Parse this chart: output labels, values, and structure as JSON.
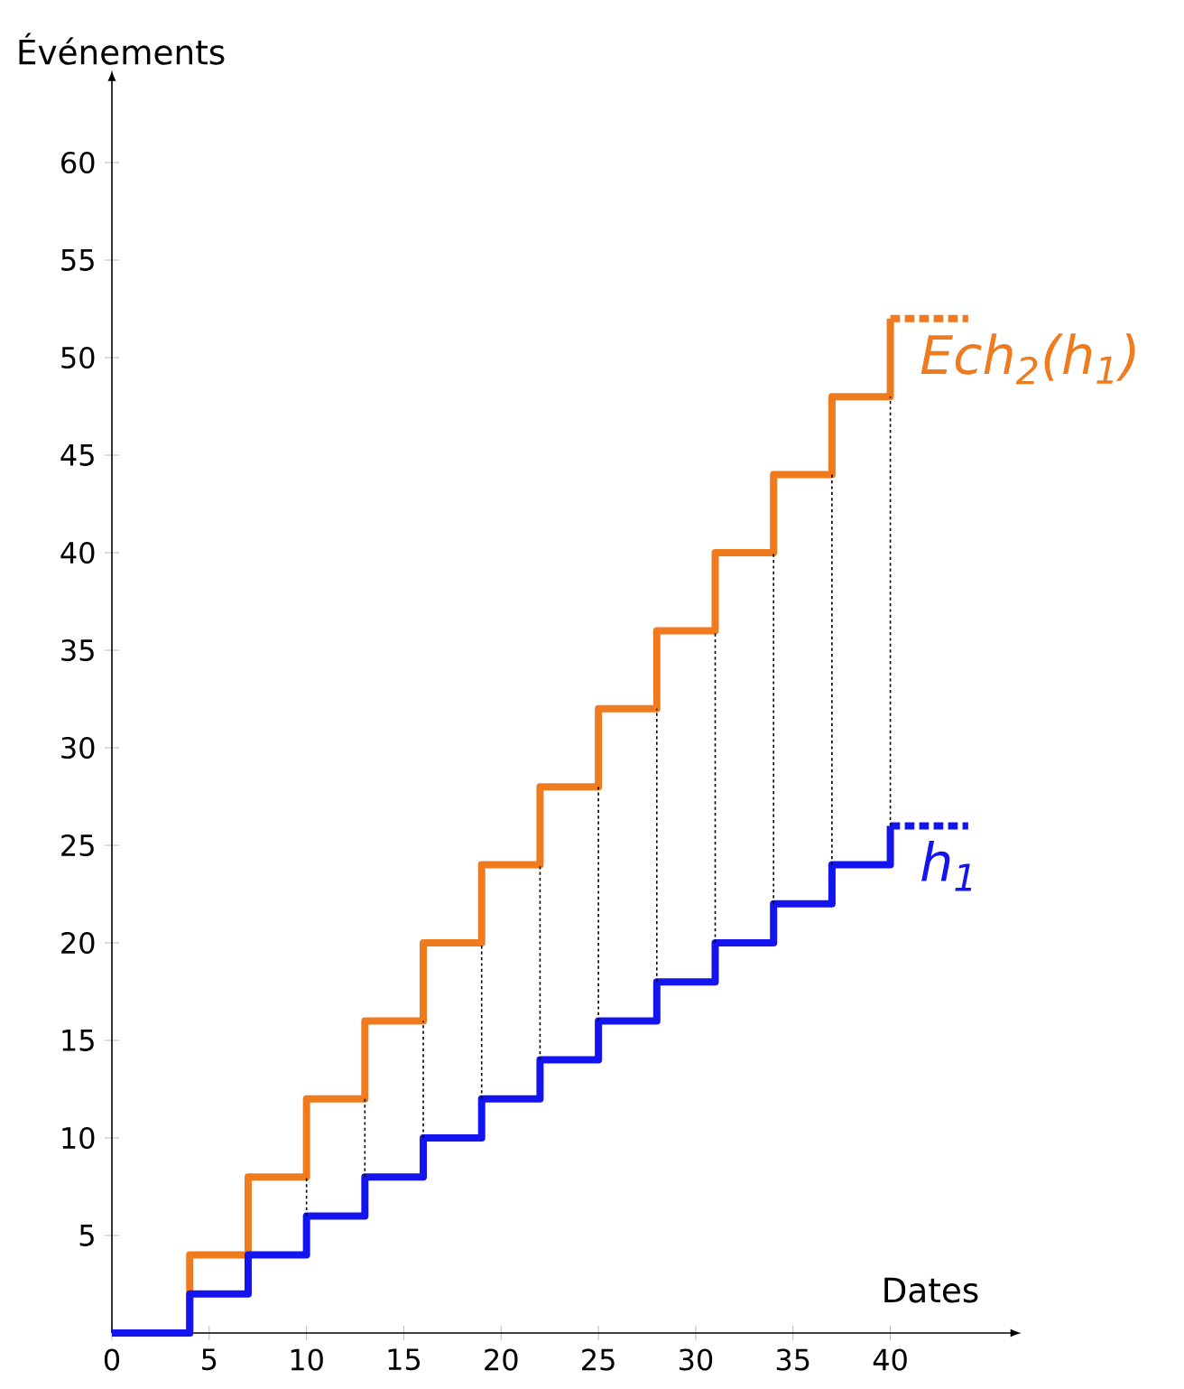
{
  "chart_data": {
    "type": "step",
    "xlabel": "Dates",
    "ylabel": "Événements",
    "xlim": [
      0,
      46
    ],
    "ylim": [
      0,
      64
    ],
    "xticks": [
      0,
      5,
      10,
      15,
      20,
      25,
      30,
      35,
      40
    ],
    "yticks": [
      5,
      10,
      15,
      20,
      25,
      30,
      35,
      40,
      45,
      50,
      55,
      60
    ],
    "marker": "none",
    "series": [
      {
        "name": "Ech$_{2}$(h$_{1}$)",
        "color": "#f07a1e",
        "line_style": "solid",
        "x": [
          0,
          4,
          7,
          10,
          13,
          16,
          19,
          22,
          25,
          28,
          31,
          34,
          37,
          40
        ],
        "values": [
          0,
          4,
          8,
          12,
          16,
          20,
          24,
          28,
          32,
          36,
          40,
          44,
          48,
          52
        ]
      },
      {
        "name": "h$_{1}$",
        "color": "#1414f0",
        "line_style": "solid",
        "x": [
          0,
          4,
          7,
          10,
          13,
          16,
          19,
          22,
          25,
          28,
          31,
          34,
          37,
          40
        ],
        "values": [
          0,
          2,
          4,
          6,
          8,
          10,
          12,
          14,
          16,
          18,
          20,
          22,
          24,
          26
        ]
      },
      {
        "color": "#f07a1e",
        "type": "line",
        "line_style": "dashed",
        "x": [
          40,
          44
        ],
        "values": [
          52,
          52
        ]
      },
      {
        "color": "#1414f0",
        "type": "line",
        "line_style": "dashed",
        "x": [
          40,
          44
        ],
        "values": [
          26,
          26
        ]
      },
      {
        "color": "#000000",
        "type": "line",
        "line_style": "dotted",
        "x": [
          10,
          10,
          null,
          13,
          13,
          null,
          16,
          16,
          null,
          19,
          19,
          null,
          22,
          22,
          null,
          25,
          25,
          null,
          28,
          28,
          null,
          31,
          31,
          null,
          34,
          34,
          null,
          37,
          37,
          null,
          40,
          40
        ],
        "values": [
          6,
          8,
          null,
          8,
          12,
          null,
          10,
          16,
          null,
          12,
          20,
          null,
          14,
          24,
          null,
          16,
          28,
          null,
          18,
          32,
          null,
          20,
          36,
          null,
          22,
          40,
          null,
          24,
          44,
          null,
          26,
          48
        ]
      }
    ]
  }
}
